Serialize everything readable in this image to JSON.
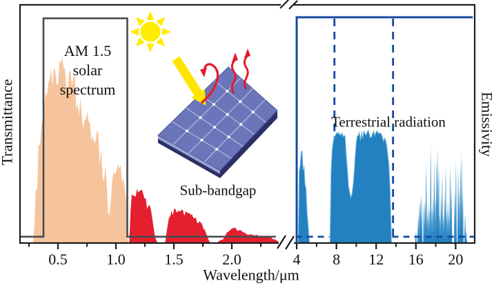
{
  "figure": {
    "background": "#ffffff",
    "frame_color": "#1b1b1b"
  },
  "labels": {
    "y_left": "Transmittance",
    "y_right": "Emissivity",
    "x_axis": "Wavelength/μm",
    "solar_line1": "AM 1.5",
    "solar_line2": "solar",
    "solar_line3": "spectrum",
    "sub_bandgap": "Sub-bandgap",
    "terrestrial": "Terrestrial radiation"
  },
  "icons": {
    "sun_color": "#ffec00",
    "panel_face_color": "#6b76ba",
    "panel_side_color": "#2b3166",
    "panel_edge_color": "#9aa2d4",
    "arrow_yellow": "#ffe400",
    "arrow_red": "#e51a2b"
  },
  "chart_data": {
    "type": "area",
    "title": "AM 1.5 solar spectrum transmittance and terrestrial radiation emissivity vs wavelength",
    "xlabel": "Wavelength/μm",
    "ylabel_left": "Transmittance",
    "ylabel_right": "Emissivity",
    "ylim": [
      0,
      1
    ],
    "grid": false,
    "axis": {
      "broken": true,
      "left_segment": {
        "range_um": [
          0.17,
          2.44
        ],
        "major_ticks": [
          0.5,
          1.0,
          1.5,
          2.0
        ],
        "tick_labels": [
          "0.5",
          "1.0",
          "1.5",
          "2.0"
        ],
        "minor_ticks": [
          0.25,
          0.75,
          1.25,
          1.75,
          2.25
        ]
      },
      "right_segment": {
        "range_um": [
          3.5,
          21.9
        ],
        "major_ticks": [
          4,
          8,
          12,
          16,
          20
        ],
        "tick_labels": [
          "4",
          "8",
          "12",
          "16",
          "20"
        ],
        "minor_ticks": [
          6,
          10,
          14,
          18
        ]
      }
    },
    "series": [
      {
        "name": "AM 1.5 solar spectrum",
        "color": "#f6c49c",
        "style": "jagged-area",
        "tooth_um": 0.012,
        "dip": 0.28,
        "points_um_value": [
          [
            0.285,
            0.0
          ],
          [
            0.3,
            0.1
          ],
          [
            0.31,
            0.32
          ],
          [
            0.32,
            0.22
          ],
          [
            0.33,
            0.47
          ],
          [
            0.34,
            0.4
          ],
          [
            0.35,
            0.58
          ],
          [
            0.36,
            0.5
          ],
          [
            0.37,
            0.63
          ],
          [
            0.38,
            0.6
          ],
          [
            0.39,
            0.71
          ],
          [
            0.4,
            0.68
          ],
          [
            0.415,
            0.76
          ],
          [
            0.43,
            0.73
          ],
          [
            0.445,
            0.8
          ],
          [
            0.46,
            0.77
          ],
          [
            0.475,
            0.84
          ],
          [
            0.49,
            0.86
          ],
          [
            0.505,
            0.83
          ],
          [
            0.52,
            0.8
          ],
          [
            0.535,
            0.83
          ],
          [
            0.55,
            0.79
          ],
          [
            0.565,
            0.81
          ],
          [
            0.58,
            0.77
          ],
          [
            0.6,
            0.79
          ],
          [
            0.615,
            0.75
          ],
          [
            0.63,
            0.77
          ],
          [
            0.65,
            0.73
          ],
          [
            0.67,
            0.71
          ],
          [
            0.69,
            0.65
          ],
          [
            0.705,
            0.68
          ],
          [
            0.72,
            0.64
          ],
          [
            0.735,
            0.66
          ],
          [
            0.75,
            0.61
          ],
          [
            0.76,
            0.52
          ],
          [
            0.77,
            0.61
          ],
          [
            0.785,
            0.58
          ],
          [
            0.8,
            0.55
          ],
          [
            0.815,
            0.47
          ],
          [
            0.83,
            0.53
          ],
          [
            0.845,
            0.49
          ],
          [
            0.86,
            0.45
          ],
          [
            0.875,
            0.41
          ],
          [
            0.89,
            0.29
          ],
          [
            0.905,
            0.39
          ],
          [
            0.92,
            0.33
          ],
          [
            0.93,
            0.18
          ],
          [
            0.94,
            0.1
          ],
          [
            0.95,
            0.16
          ],
          [
            0.965,
            0.27
          ],
          [
            0.98,
            0.33
          ],
          [
            1.0,
            0.39
          ],
          [
            1.02,
            0.4
          ],
          [
            1.04,
            0.36
          ],
          [
            1.06,
            0.31
          ],
          [
            1.08,
            0.25
          ],
          [
            1.095,
            0.14
          ],
          [
            1.105,
            0.0
          ]
        ]
      },
      {
        "name": "Sub-bandgap",
        "color": "#e4202e",
        "style": "jagged-area",
        "tooth_um": 0.011,
        "dip": 0.3,
        "segments_um_value": [
          [
            [
              1.115,
              0.0
            ],
            [
              1.125,
              0.14
            ],
            [
              1.135,
              0.22
            ],
            [
              1.15,
              0.245
            ],
            [
              1.165,
              0.22
            ],
            [
              1.18,
              0.245
            ],
            [
              1.2,
              0.235
            ],
            [
              1.22,
              0.245
            ],
            [
              1.24,
              0.22
            ],
            [
              1.26,
              0.2
            ],
            [
              1.28,
              0.185
            ],
            [
              1.3,
              0.16
            ],
            [
              1.32,
              0.1
            ],
            [
              1.335,
              0.04
            ],
            [
              1.35,
              0.01
            ],
            [
              1.36,
              0.0
            ]
          ],
          [
            [
              1.425,
              0.0
            ],
            [
              1.44,
              0.06
            ],
            [
              1.46,
              0.12
            ],
            [
              1.48,
              0.145
            ],
            [
              1.52,
              0.155
            ],
            [
              1.56,
              0.15
            ],
            [
              1.6,
              0.145
            ],
            [
              1.64,
              0.135
            ],
            [
              1.68,
              0.12
            ],
            [
              1.72,
              0.1
            ],
            [
              1.76,
              0.07
            ],
            [
              1.79,
              0.03
            ],
            [
              1.81,
              0.0
            ]
          ],
          [
            [
              1.87,
              0.0
            ],
            [
              1.9,
              0.015
            ],
            [
              1.93,
              0.02
            ],
            [
              1.96,
              0.05
            ],
            [
              1.99,
              0.065
            ],
            [
              2.03,
              0.07
            ],
            [
              2.07,
              0.06
            ],
            [
              2.12,
              0.045
            ],
            [
              2.18,
              0.04
            ],
            [
              2.25,
              0.035
            ],
            [
              2.32,
              0.03
            ],
            [
              2.38,
              0.015
            ],
            [
              2.42,
              0.0
            ]
          ]
        ]
      },
      {
        "name": "Terrestrial radiation",
        "color": "#2381c1",
        "highlight_color": "#8ec4e2",
        "style": "jagged-area",
        "segment_styles": [
          {
            "tooth_um": 0.1,
            "dip": 0.5
          },
          {
            "tooth_um": 0.11,
            "dip": 0.1
          }
        ],
        "segments_um_value": [
          [
            [
              4.15,
              0.0
            ],
            [
              4.2,
              0.2
            ],
            [
              4.26,
              0.38
            ],
            [
              4.33,
              0.43
            ],
            [
              4.42,
              0.4
            ],
            [
              4.52,
              0.42
            ],
            [
              4.62,
              0.38
            ],
            [
              4.72,
              0.36
            ],
            [
              4.82,
              0.31
            ],
            [
              4.92,
              0.27
            ],
            [
              5.02,
              0.19
            ],
            [
              5.12,
              0.11
            ],
            [
              5.22,
              0.05
            ],
            [
              5.3,
              0.0
            ]
          ],
          [
            [
              7.35,
              0.0
            ],
            [
              7.45,
              0.32
            ],
            [
              7.55,
              0.43
            ],
            [
              7.7,
              0.47
            ],
            [
              7.9,
              0.49
            ],
            [
              8.2,
              0.5
            ],
            [
              8.6,
              0.5
            ],
            [
              8.9,
              0.47
            ],
            [
              9.05,
              0.38
            ],
            [
              9.2,
              0.27
            ],
            [
              9.4,
              0.21
            ],
            [
              9.6,
              0.22
            ],
            [
              9.8,
              0.33
            ],
            [
              9.95,
              0.44
            ],
            [
              10.15,
              0.49
            ],
            [
              10.6,
              0.5
            ],
            [
              11.3,
              0.5
            ],
            [
              12.0,
              0.5
            ],
            [
              12.5,
              0.49
            ],
            [
              12.9,
              0.47
            ],
            [
              13.15,
              0.43
            ],
            [
              13.35,
              0.32
            ],
            [
              13.48,
              0.14
            ],
            [
              13.55,
              0.0
            ]
          ]
        ],
        "spike_band_um_value": [
          [
            15.9,
            0.03
          ],
          [
            16.2,
            0.12
          ],
          [
            16.5,
            0.24
          ],
          [
            16.8,
            0.32
          ],
          [
            17.1,
            0.43
          ],
          [
            17.35,
            0.36
          ],
          [
            17.6,
            0.43
          ],
          [
            17.9,
            0.32
          ],
          [
            18.2,
            0.43
          ],
          [
            18.5,
            0.27
          ],
          [
            18.8,
            0.4
          ],
          [
            19.1,
            0.32
          ],
          [
            19.4,
            0.43
          ],
          [
            19.7,
            0.24
          ],
          [
            20.0,
            0.36
          ],
          [
            20.3,
            0.31
          ],
          [
            20.6,
            0.4
          ],
          [
            20.9,
            0.22
          ],
          [
            21.1,
            0.1
          ],
          [
            21.25,
            0.03
          ]
        ]
      }
    ],
    "overlays": {
      "transmittance_window": {
        "color": "#474b52",
        "step_points_um_value": [
          [
            0.17,
            0.028
          ],
          [
            0.375,
            0.028
          ],
          [
            0.375,
            0.995
          ],
          [
            1.098,
            0.995
          ],
          [
            1.098,
            0.028
          ],
          [
            2.38,
            0.028
          ]
        ]
      },
      "emissivity_window": {
        "color": "#15489e",
        "solid_outline_um_value": [
          [
            4.0,
            0.0
          ],
          [
            4.0,
            1.0
          ],
          [
            21.72,
            1.0
          ]
        ],
        "dashed_vertical_um": [
          7.8,
          13.7
        ],
        "dashed_horizontal_value": 0.028,
        "dashed_horizontal_um_ranges": [
          [
            3.9,
            7.3
          ],
          [
            13.62,
            21.9
          ]
        ]
      }
    }
  }
}
